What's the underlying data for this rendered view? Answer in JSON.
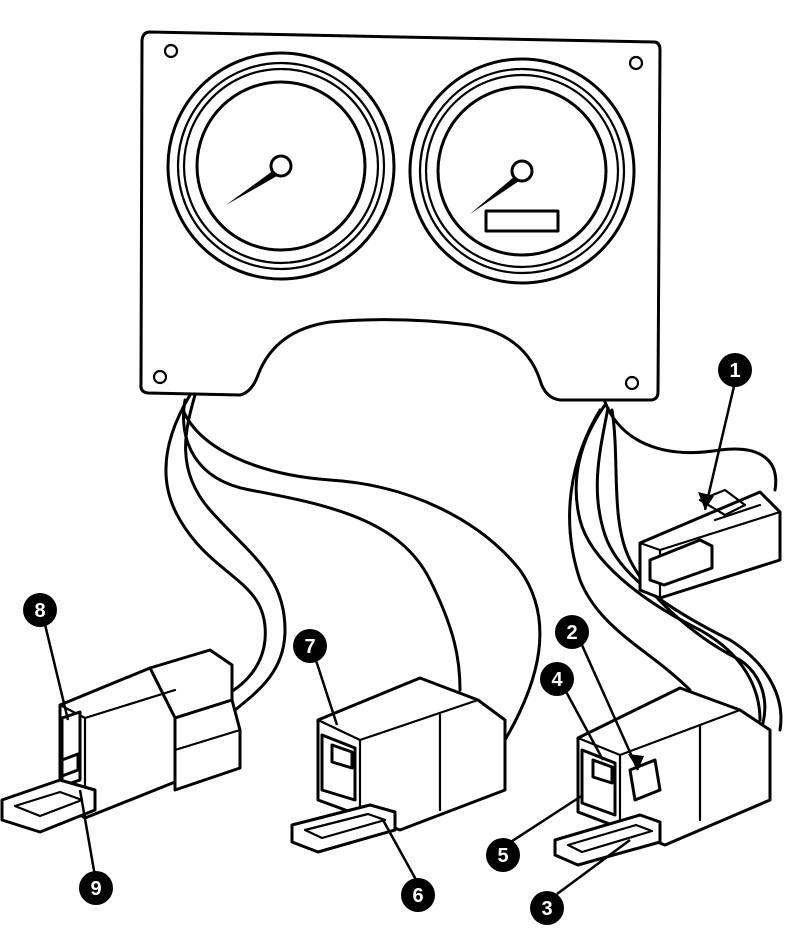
{
  "callouts": [
    {
      "id": "1",
      "label": "1"
    },
    {
      "id": "2",
      "label": "2"
    },
    {
      "id": "3",
      "label": "3"
    },
    {
      "id": "4",
      "label": "4"
    },
    {
      "id": "5",
      "label": "5"
    },
    {
      "id": "6",
      "label": "6"
    },
    {
      "id": "7",
      "label": "7"
    },
    {
      "id": "8",
      "label": "8"
    },
    {
      "id": "9",
      "label": "9"
    }
  ],
  "icons": {
    "panel": "instrument-cluster-icon",
    "left_gauge": "tachometer-gauge-icon",
    "right_gauge": "speedometer-gauge-icon",
    "connectors": "wiring-connector-icon"
  }
}
